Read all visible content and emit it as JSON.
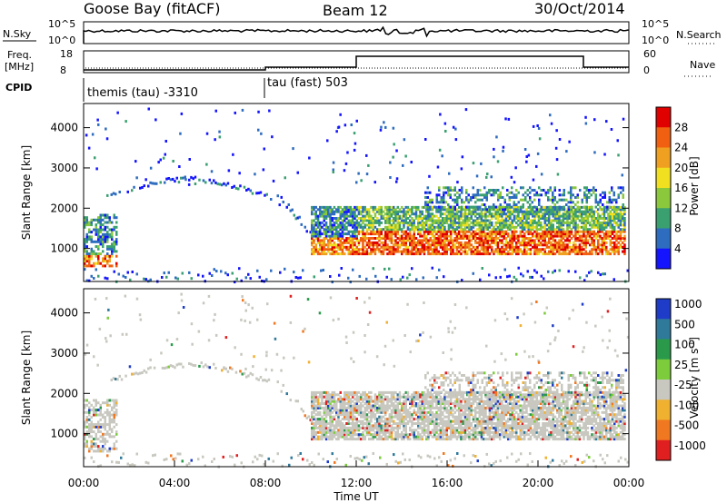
{
  "header": {
    "station": "Goose Bay (fitACF)",
    "beam": "Beam 12",
    "date": "30/Oct/2014"
  },
  "nsky_panel": {
    "left_label": "N.Sky",
    "left_ticks": [
      "10^5",
      "10^0"
    ],
    "right_ticks": [
      "10^5",
      "10^0"
    ],
    "right_label": "N.Search"
  },
  "freq_panel": {
    "left_label_1": "Freq.",
    "left_label_2": "[MHz]",
    "left_ticks": [
      "18",
      "8"
    ],
    "right_ticks": [
      "60",
      "0"
    ],
    "right_label": "Nave"
  },
  "cpid_panel": {
    "label": "CPID",
    "segments": [
      {
        "text": "themis (tau) -3310",
        "start_hour": 0
      },
      {
        "text": "tau (fast) 503",
        "start_hour": 8
      }
    ]
  },
  "chart_data": [
    {
      "type": "heatmap",
      "name": "power",
      "ylabel": "Slant Range [km]",
      "y_ticks": [
        "1000",
        "2000",
        "3000",
        "4000"
      ],
      "ylim": [
        180,
        4600
      ],
      "xlim_hours": [
        0,
        24
      ],
      "colorbar": {
        "label": "Power [dB]",
        "ticks": [
          "4",
          "8",
          "12",
          "16",
          "20",
          "24",
          "28"
        ],
        "range": [
          0,
          32
        ],
        "colors": [
          "#1414ff",
          "#2e6cbf",
          "#3aa070",
          "#8cc83c",
          "#f0e020",
          "#f0a020",
          "#f06010",
          "#e00000"
        ]
      },
      "regions": [
        {
          "t0": 0.2,
          "t1": 10.2,
          "r0": 2150,
          "r1": 2650,
          "level": 1,
          "note": "arc 1.5-8h"
        },
        {
          "t0": 0.0,
          "t1": 1.5,
          "r0": 600,
          "r1": 1800,
          "level": 3
        },
        {
          "t0": 10.0,
          "t1": 23.8,
          "r0": 900,
          "r1": 1700,
          "level": 6
        },
        {
          "t0": 10.0,
          "t1": 23.8,
          "r0": 1600,
          "r1": 2100,
          "level": 3
        },
        {
          "t0": 15.0,
          "t1": 23.8,
          "r0": 2000,
          "r1": 2600,
          "level": 2
        },
        {
          "t0": 0.0,
          "t1": 24.0,
          "r0": 200,
          "r1": 500,
          "level": 1
        }
      ]
    },
    {
      "type": "heatmap",
      "name": "velocity",
      "ylabel": "Slant Range [km]",
      "y_ticks": [
        "1000",
        "2000",
        "3000",
        "4000"
      ],
      "ylim": [
        180,
        4600
      ],
      "xlim_hours": [
        0,
        24
      ],
      "xlabel": "Time UT",
      "x_ticks": [
        "00:00",
        "04:00",
        "08:00",
        "12:00",
        "16:00",
        "20:00",
        "00:00"
      ],
      "colorbar": {
        "label": "Velocity [m s^-1]",
        "ticks": [
          "1000",
          "500",
          "100",
          "25",
          "-25",
          "-100",
          "-500",
          "-1000"
        ],
        "colors": [
          "#1e3cc8",
          "#2f7a9a",
          "#2a9a4a",
          "#7ccc3c",
          "#c8c8c0",
          "#f0b030",
          "#f07820",
          "#e02020"
        ]
      }
    }
  ]
}
